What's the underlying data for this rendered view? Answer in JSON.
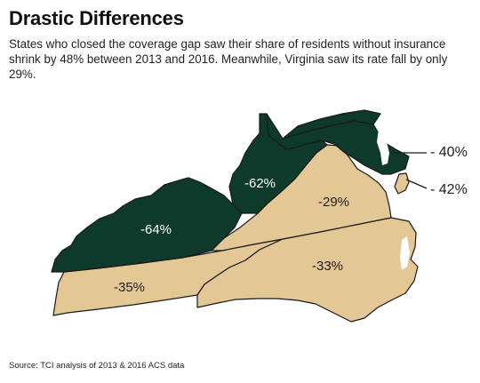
{
  "header": {
    "title": "Drastic Differences",
    "subtitle": "States who closed the coverage gap saw their share of residents without insurance shrink by 48% between 2013 and 2016. Meanwhile, Virginia saw its rate fall by only 29%."
  },
  "map": {
    "colors": {
      "expansion_state": "#0d3a2b",
      "non_expansion_state": "#e3c795",
      "border": "#1a1a1a",
      "label_on_dark": "#ffffff",
      "label_on_light": "#1e1e1e"
    },
    "states": {
      "kentucky": {
        "label": "-64%",
        "expanded": true
      },
      "west_virginia": {
        "label": "-62%",
        "expanded": true
      },
      "virginia": {
        "label": "-29%",
        "expanded": false
      },
      "north_carolina": {
        "label": "-33%",
        "expanded": false
      },
      "tennessee": {
        "label": "-35%",
        "expanded": false
      },
      "maryland": {
        "label": "- 40%",
        "expanded": true
      },
      "delaware": {
        "label": "- 42%",
        "expanded": false
      }
    }
  },
  "footer": {
    "source": "Source: TCI analysis of 2013 & 2016 ACS data"
  }
}
